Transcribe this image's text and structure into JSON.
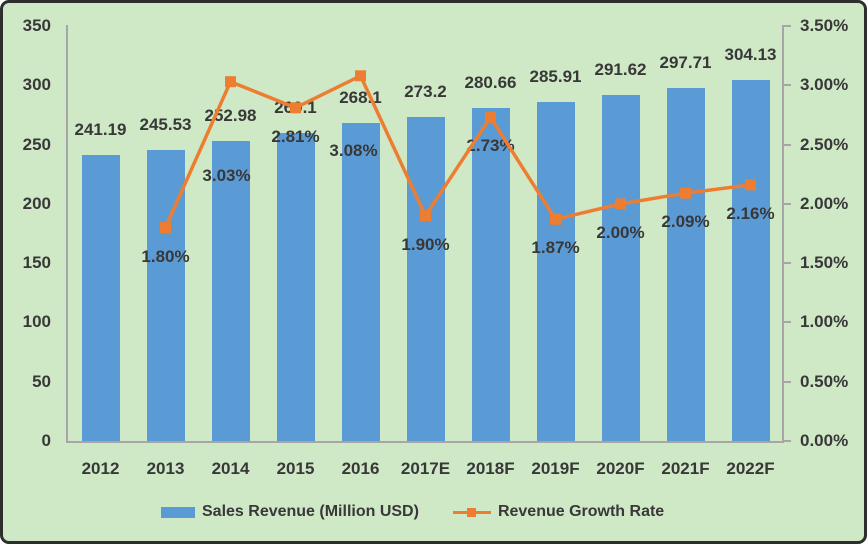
{
  "chart_data": {
    "type": "bar",
    "subtype": "combo-bar-line-dual-axis",
    "title": "",
    "categories": [
      "2012",
      "2013",
      "2014",
      "2015",
      "2016",
      "2017E",
      "2018F",
      "2019F",
      "2020F",
      "2021F",
      "2022F"
    ],
    "series": [
      {
        "name": "Sales Revenue (Million USD)",
        "type": "bar",
        "axis": "left",
        "color": "#5B9BD5",
        "values": [
          241.19,
          245.53,
          252.98,
          260.1,
          268.1,
          273.2,
          280.66,
          285.91,
          291.62,
          297.71,
          304.13
        ],
        "data_labels": [
          "241.19",
          "245.53",
          "252.98",
          "260.1",
          "268.1",
          "273.2",
          "280.66",
          "285.91",
          "291.62",
          "297.71",
          "304.13"
        ]
      },
      {
        "name": "Revenue Growth Rate",
        "type": "line",
        "axis": "right",
        "color": "#ED7D31",
        "values": [
          null,
          1.8,
          3.03,
          2.81,
          3.08,
          1.9,
          2.73,
          1.87,
          2.0,
          2.09,
          2.16
        ],
        "data_labels": [
          null,
          "1.80%",
          "3.03%",
          "2.81%",
          "3.08%",
          "1.90%",
          "2.73%",
          "1.87%",
          "2.00%",
          "2.09%",
          "2.16%"
        ]
      }
    ],
    "left_axis": {
      "min": 0,
      "max": 350,
      "step": 50,
      "tick_labels": [
        "350",
        "300",
        "250",
        "200",
        "150",
        "100",
        "50",
        "0"
      ]
    },
    "right_axis": {
      "min": 0,
      "max": 3.5,
      "step": 0.5,
      "tick_labels": [
        "3.50%",
        "3.00%",
        "2.50%",
        "2.00%",
        "1.50%",
        "1.00%",
        "0.50%",
        "0.00%"
      ]
    },
    "gridlines": "off",
    "legend_position": "bottom",
    "legend": [
      {
        "label": "Sales Revenue (Million USD)",
        "swatch": "bar",
        "color": "#5B9BD5"
      },
      {
        "label": "Revenue Growth Rate",
        "swatch": "line-marker",
        "color": "#ED7D31"
      }
    ]
  },
  "colors": {
    "background": "#CFE9C6",
    "bar": "#5B9BD5",
    "line": "#ED7D31",
    "axis": "#A6A6A6",
    "text": "#383838",
    "border": "#2E2E2E"
  }
}
